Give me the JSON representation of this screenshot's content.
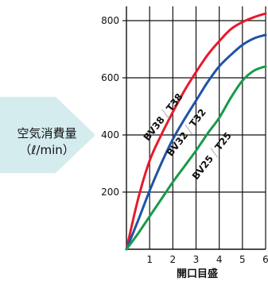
{
  "chart_data": {
    "type": "line",
    "ylabel_line1": "空気消費量",
    "ylabel_line2": "（ℓ/min）",
    "xlabel": "開口目盛",
    "xlim": [
      0,
      6
    ],
    "ylim": [
      0,
      850
    ],
    "xticks": [
      "1",
      "2",
      "3",
      "4",
      "5",
      "6"
    ],
    "yticks": [
      "200",
      "400",
      "600",
      "800"
    ],
    "grid": true,
    "colors": {
      "red": "#e8192c",
      "blue": "#1f53a5",
      "green": "#1a9a4a",
      "arrow": "#d5ecef"
    },
    "series": [
      {
        "name": "BV38 / T38",
        "color": "#e8192c",
        "x": [
          0,
          0.5,
          1,
          1.5,
          2,
          2.5,
          3,
          3.5,
          4,
          4.5,
          5,
          5.5,
          6
        ],
        "y": [
          0,
          175,
          310,
          400,
          480,
          555,
          620,
          680,
          728,
          770,
          795,
          812,
          825
        ]
      },
      {
        "name": "BV32 / T32",
        "color": "#1f53a5",
        "x": [
          0,
          0.5,
          1,
          1.5,
          2,
          2.5,
          3,
          3.5,
          4,
          4.5,
          5,
          5.5,
          6
        ],
        "y": [
          0,
          100,
          205,
          300,
          385,
          455,
          520,
          585,
          640,
          680,
          715,
          738,
          750
        ]
      },
      {
        "name": "BV25 / T25",
        "color": "#1a9a4a",
        "x": [
          0,
          0.5,
          1,
          1.5,
          2,
          2.5,
          3,
          3.5,
          4,
          4.5,
          5,
          5.5,
          6
        ],
        "y": [
          0,
          55,
          115,
          175,
          235,
          290,
          345,
          405,
          460,
          530,
          590,
          625,
          640
        ]
      }
    ],
    "series_labels": [
      {
        "left": "BV38",
        "right": "T38"
      },
      {
        "left": "BV32",
        "right": "T32"
      },
      {
        "left": "BV25",
        "right": "T25"
      }
    ]
  }
}
